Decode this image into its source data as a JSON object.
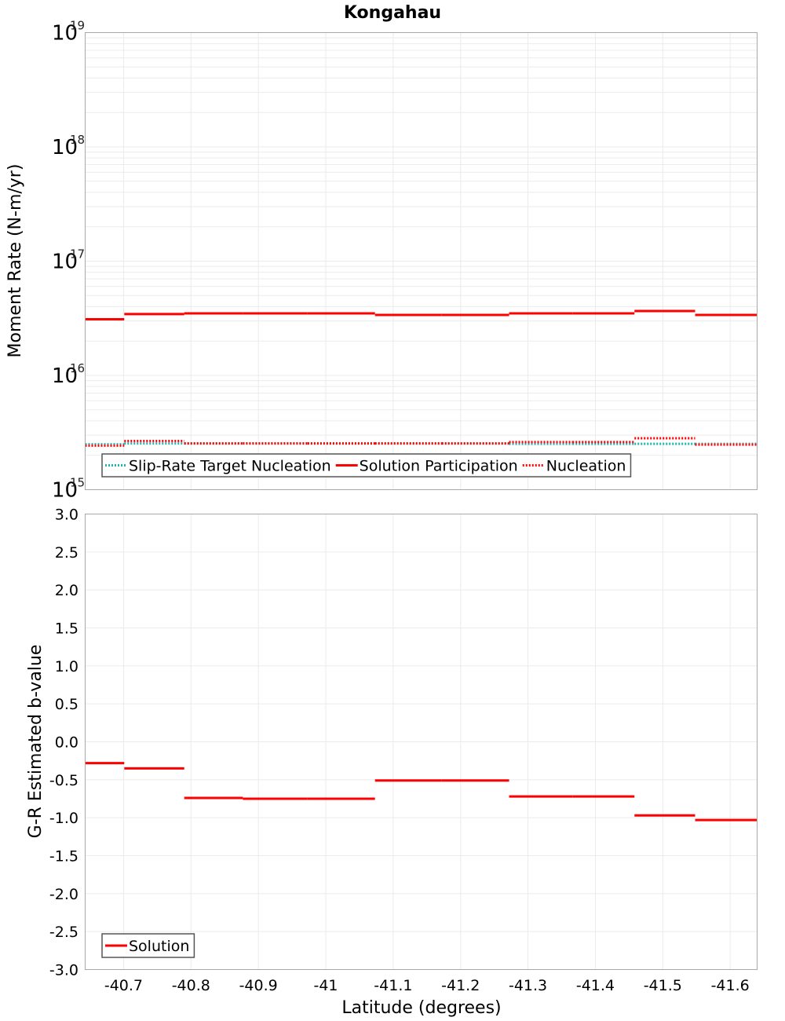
{
  "title": "Kongahau",
  "colors": {
    "solution": "#ff0000",
    "target": "#1fb5b5",
    "grid": "#ebebeb",
    "frame": "#a8a8a8",
    "legend_border": "#555555"
  },
  "chart_data": [
    {
      "type": "line",
      "title": "Kongahau",
      "xlabel": "Latitude (degrees)",
      "ylabel": "Moment Rate (N-m/yr)",
      "yscale": "log",
      "ylim": [
        1000000000000000.0,
        1e+19
      ],
      "xlim": [
        -40.643,
        -41.64
      ],
      "y_tick_labels": [
        "10^15",
        "10^16",
        "10^17",
        "10^18",
        "10^19"
      ],
      "grid": true,
      "legend_position": "lower left",
      "legend": [
        "Slip-Rate Target Nucleation",
        "Solution Participation",
        "Nucleation"
      ],
      "series": [
        {
          "name": "Slip-Rate Target Nucleation",
          "style": "dotted",
          "color": "#1fb5b5",
          "segments": [
            {
              "x": [
                -40.643,
                -40.701
              ],
              "y": 2500000000000000.0
            },
            {
              "x": [
                -40.701,
                -40.79
              ],
              "y": 2540000000000000.0
            },
            {
              "x": [
                -40.79,
                -40.877
              ],
              "y": 2540000000000000.0
            },
            {
              "x": [
                -40.877,
                -40.973
              ],
              "y": 2540000000000000.0
            },
            {
              "x": [
                -40.973,
                -41.073
              ],
              "y": 2540000000000000.0
            },
            {
              "x": [
                -41.073,
                -41.172
              ],
              "y": 2540000000000000.0
            },
            {
              "x": [
                -41.172,
                -41.272
              ],
              "y": 2540000000000000.0
            },
            {
              "x": [
                -41.272,
                -41.366
              ],
              "y": 2520000000000000.0
            },
            {
              "x": [
                -41.366,
                -41.458
              ],
              "y": 2520000000000000.0
            },
            {
              "x": [
                -41.458,
                -41.548
              ],
              "y": 2520000000000000.0
            },
            {
              "x": [
                -41.548,
                -41.64
              ],
              "y": 2520000000000000.0
            }
          ]
        },
        {
          "name": "Solution Participation",
          "style": "solid",
          "color": "#ff0000",
          "segments": [
            {
              "x": [
                -40.643,
                -40.701
              ],
              "y": 3.1e+16
            },
            {
              "x": [
                -40.701,
                -40.79
              ],
              "y": 3.44e+16
            },
            {
              "x": [
                -40.79,
                -40.877
              ],
              "y": 3.49e+16
            },
            {
              "x": [
                -40.877,
                -40.973
              ],
              "y": 3.49e+16
            },
            {
              "x": [
                -40.973,
                -41.073
              ],
              "y": 3.49e+16
            },
            {
              "x": [
                -41.073,
                -41.172
              ],
              "y": 3.38e+16
            },
            {
              "x": [
                -41.172,
                -41.272
              ],
              "y": 3.38e+16
            },
            {
              "x": [
                -41.272,
                -41.366
              ],
              "y": 3.49e+16
            },
            {
              "x": [
                -41.366,
                -41.458
              ],
              "y": 3.49e+16
            },
            {
              "x": [
                -41.458,
                -41.548
              ],
              "y": 3.66e+16
            },
            {
              "x": [
                -41.548,
                -41.64
              ],
              "y": 3.38e+16
            }
          ]
        },
        {
          "name": "Nucleation",
          "style": "dotted",
          "color": "#ff0000",
          "segments": [
            {
              "x": [
                -40.643,
                -40.701
              ],
              "y": 2430000000000000.0
            },
            {
              "x": [
                -40.701,
                -40.79
              ],
              "y": 2670000000000000.0
            },
            {
              "x": [
                -40.79,
                -40.877
              ],
              "y": 2540000000000000.0
            },
            {
              "x": [
                -40.877,
                -40.973
              ],
              "y": 2540000000000000.0
            },
            {
              "x": [
                -40.973,
                -41.073
              ],
              "y": 2540000000000000.0
            },
            {
              "x": [
                -41.073,
                -41.172
              ],
              "y": 2540000000000000.0
            },
            {
              "x": [
                -41.172,
                -41.272
              ],
              "y": 2540000000000000.0
            },
            {
              "x": [
                -41.272,
                -41.366
              ],
              "y": 2610000000000000.0
            },
            {
              "x": [
                -41.366,
                -41.458
              ],
              "y": 2610000000000000.0
            },
            {
              "x": [
                -41.458,
                -41.548
              ],
              "y": 2820000000000000.0
            },
            {
              "x": [
                -41.548,
                -41.64
              ],
              "y": 2480000000000000.0
            }
          ]
        }
      ]
    },
    {
      "type": "line",
      "title": "",
      "xlabel": "Latitude (degrees)",
      "ylabel": "G-R Estimated b-value",
      "ylim": [
        -3.0,
        3.0
      ],
      "xlim": [
        -40.643,
        -41.64
      ],
      "y_ticks": [
        3.0,
        2.5,
        2.0,
        1.5,
        1.0,
        0.5,
        0.0,
        -0.5,
        -1.0,
        -1.5,
        -2.0,
        -2.5,
        -3.0
      ],
      "y_tick_labels": [
        "3.0",
        "2.5",
        "2.0",
        "1.5",
        "1.0",
        "0.5",
        "0.0",
        "-0.5",
        "-1.0",
        "-1.5",
        "-2.0",
        "-2.5",
        "-3.0"
      ],
      "x_ticks": [
        -40.7,
        -40.8,
        -40.9,
        -41,
        -41.1,
        -41.2,
        -41.3,
        -41.4,
        -41.5,
        -41.6
      ],
      "x_tick_labels": [
        "-40.7",
        "-40.8",
        "-40.9",
        "-41",
        "-41.1",
        "-41.2",
        "-41.3",
        "-41.4",
        "-41.5",
        "-41.6"
      ],
      "grid": true,
      "legend_position": "lower left",
      "legend": [
        "Solution"
      ],
      "series": [
        {
          "name": "Solution",
          "style": "solid",
          "color": "#ff0000",
          "segments": [
            {
              "x": [
                -40.643,
                -40.701
              ],
              "y": -0.28
            },
            {
              "x": [
                -40.701,
                -40.79
              ],
              "y": -0.35
            },
            {
              "x": [
                -40.79,
                -40.877
              ],
              "y": -0.74
            },
            {
              "x": [
                -40.877,
                -40.973
              ],
              "y": -0.75
            },
            {
              "x": [
                -40.973,
                -41.073
              ],
              "y": -0.75
            },
            {
              "x": [
                -41.073,
                -41.172
              ],
              "y": -0.51
            },
            {
              "x": [
                -41.172,
                -41.272
              ],
              "y": -0.51
            },
            {
              "x": [
                -41.272,
                -41.366
              ],
              "y": -0.72
            },
            {
              "x": [
                -41.366,
                -41.458
              ],
              "y": -0.72
            },
            {
              "x": [
                -41.458,
                -41.548
              ],
              "y": -0.97
            },
            {
              "x": [
                -41.548,
                -41.64
              ],
              "y": -1.03
            }
          ]
        }
      ]
    }
  ]
}
